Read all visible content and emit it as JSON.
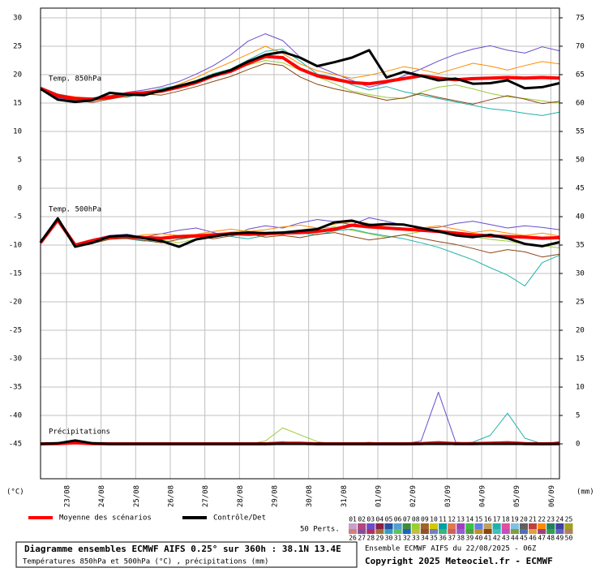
{
  "chart_data": {
    "type": "line",
    "title": "Diagramme ensembles ECMWF AIFS 0.25° sur 360h : 38.1N 13.4E",
    "subtitle": "Températures 850hPa et 500hPa (°C) , précipitations (mm)",
    "run_label": "Ensemble ECMWF AIFS du 22/08/2025 - 06Z",
    "copyright": "Copyright 2025 Meteociel.fr - ECMWF",
    "annotations": [
      "Temp. 850hPa",
      "Temp. 500hPa",
      "Précipitations"
    ],
    "y_unit_label": "(°C)",
    "y2_unit_label": "(mm)",
    "members_label": "50 Perts.",
    "grid": true,
    "x": [
      0,
      12,
      24,
      36,
      48,
      60,
      72,
      84,
      96,
      108,
      120,
      132,
      144,
      156,
      168,
      180,
      192,
      204,
      216,
      228,
      240,
      252,
      264,
      276,
      288,
      300,
      312,
      324,
      336,
      348,
      360
    ],
    "xlim": [
      0,
      360
    ],
    "xticks": [
      {
        "value": 18,
        "label": "23/08"
      },
      {
        "value": 42,
        "label": "24/08"
      },
      {
        "value": 66,
        "label": "25/08"
      },
      {
        "value": 90,
        "label": "26/08"
      },
      {
        "value": 114,
        "label": "27/08"
      },
      {
        "value": 138,
        "label": "28/08"
      },
      {
        "value": 162,
        "label": "29/08"
      },
      {
        "value": 186,
        "label": "30/08"
      },
      {
        "value": 210,
        "label": "31/08"
      },
      {
        "value": 234,
        "label": "01/09"
      },
      {
        "value": 258,
        "label": "02/09"
      },
      {
        "value": 282,
        "label": "03/09"
      },
      {
        "value": 306,
        "label": "04/09"
      },
      {
        "value": 330,
        "label": "05/09"
      },
      {
        "value": 354,
        "label": "06/09"
      }
    ],
    "ylim": [
      -51.14,
      31.71
    ],
    "yticks": [
      30,
      25,
      20,
      15,
      10,
      5,
      0,
      -5,
      -10,
      -15,
      -20,
      -25,
      -30,
      -35,
      -40,
      -45
    ],
    "y2lim": [
      -6.14,
      76.71
    ],
    "y2ticks": [
      75,
      70,
      65,
      60,
      55,
      50,
      45,
      40,
      35,
      30,
      25,
      20,
      15,
      10,
      5,
      0
    ],
    "series": [
      {
        "name": "Moyenne des scénarios",
        "color": "#ff0000",
        "t850": [
          17.6,
          16.3,
          15.8,
          15.7,
          16.0,
          16.6,
          16.8,
          17.1,
          17.8,
          18.6,
          19.8,
          20.6,
          22.0,
          23.2,
          23.0,
          21.0,
          19.8,
          19.2,
          18.6,
          18.4,
          18.8,
          19.3,
          19.8,
          19.4,
          19.1,
          19.3,
          19.4,
          19.5,
          19.4,
          19.5,
          19.4
        ],
        "t500": [
          -9.6,
          -5.6,
          -10.0,
          -9.2,
          -8.6,
          -8.5,
          -8.7,
          -8.8,
          -8.5,
          -8.4,
          -8.2,
          -8.0,
          -8.1,
          -8.0,
          -7.9,
          -7.8,
          -7.6,
          -7.2,
          -6.5,
          -6.8,
          -7.0,
          -7.2,
          -7.4,
          -7.6,
          -7.9,
          -8.2,
          -8.4,
          -8.5,
          -8.6,
          -8.8,
          -8.7
        ],
        "precip": [
          0,
          0.05,
          0.2,
          0.05,
          0,
          0,
          0,
          0,
          0,
          0,
          0,
          0,
          0,
          0,
          0.1,
          0.1,
          0,
          0,
          0,
          0,
          0,
          0,
          0.05,
          0.2,
          0.05,
          0.05,
          0.1,
          0.2,
          0.05,
          0,
          0.05
        ]
      },
      {
        "name": "Contrôle/Det",
        "color": "#000000",
        "t850": [
          17.5,
          15.6,
          15.2,
          15.5,
          16.8,
          16.5,
          16.4,
          17.2,
          18.0,
          18.8,
          19.9,
          20.8,
          22.3,
          23.5,
          24.0,
          23.0,
          21.5,
          22.2,
          23.0,
          24.3,
          19.5,
          20.5,
          19.8,
          19.0,
          19.3,
          18.4,
          18.5,
          19.0,
          17.6,
          17.8,
          18.5
        ],
        "t500": [
          -9.5,
          -5.3,
          -10.3,
          -9.6,
          -8.5,
          -8.3,
          -8.8,
          -9.3,
          -10.3,
          -9.0,
          -8.5,
          -8.0,
          -7.8,
          -7.9,
          -7.8,
          -7.5,
          -7.2,
          -6.0,
          -5.7,
          -6.5,
          -6.3,
          -6.4,
          -7.0,
          -7.6,
          -8.3,
          -8.6,
          -8.2,
          -8.8,
          -9.8,
          -10.2,
          -9.5
        ],
        "precip": [
          0,
          0.1,
          0.6,
          0.1,
          0,
          0,
          0,
          0,
          0,
          0,
          0,
          0,
          0,
          0,
          0,
          0,
          0,
          0,
          0,
          0,
          0,
          0,
          0,
          0,
          0,
          0,
          0,
          0,
          0,
          0,
          0
        ]
      }
    ],
    "members": [
      {
        "name": "01",
        "color": "#c8a0c8"
      },
      {
        "name": "02",
        "color": "#b4467a"
      },
      {
        "name": "03",
        "color": "#6a4ccd",
        "t850": [
          17.3,
          15.9,
          15.4,
          15.6,
          16.2,
          16.9,
          17.3,
          17.9,
          18.8,
          20.1,
          21.6,
          23.5,
          25.9,
          27.2,
          26.0,
          23.1,
          21.5,
          20.2,
          19.0,
          17.8,
          18.5,
          19.8,
          21.0,
          22.4,
          23.6,
          24.5,
          25.1,
          24.3,
          23.8,
          24.9,
          24.2
        ],
        "t500": [
          -9.4,
          -5.2,
          -10.1,
          -9.0,
          -8.3,
          -8.1,
          -8.6,
          -8.0,
          -7.4,
          -7.0,
          -7.8,
          -8.5,
          -7.2,
          -6.6,
          -7.0,
          -6.1,
          -5.5,
          -5.9,
          -6.4,
          -5.2,
          -5.8,
          -6.5,
          -7.1,
          -6.9,
          -6.2,
          -5.8,
          -6.4,
          -7.0,
          -6.6,
          -6.9,
          -7.3
        ],
        "precip": [
          0,
          0.2,
          0.4,
          0,
          0,
          0,
          0,
          0,
          0,
          0,
          0,
          0,
          0,
          0,
          0,
          0,
          0,
          0,
          0,
          0,
          0,
          0,
          0.5,
          9.1,
          0.3,
          0,
          0,
          0,
          0,
          0,
          0.4
        ]
      },
      {
        "name": "04",
        "color": "#8c2040"
      },
      {
        "name": "05",
        "color": "#2850a0"
      },
      {
        "name": "06",
        "color": "#50a0d0"
      },
      {
        "name": "07",
        "color": "#3c8c3c"
      },
      {
        "name": "08",
        "color": "#9acd32",
        "t850": [
          17.5,
          16.2,
          15.7,
          15.4,
          15.9,
          16.5,
          17.0,
          17.4,
          18.0,
          18.9,
          19.6,
          20.8,
          21.7,
          22.5,
          22.1,
          20.8,
          19.6,
          18.4,
          17.1,
          16.5,
          16.0,
          15.8,
          16.9,
          17.8,
          18.2,
          17.5,
          16.7,
          16.1,
          15.8,
          15.4,
          15.0
        ],
        "t500": [
          -9.5,
          -5.5,
          -9.9,
          -9.3,
          -8.7,
          -8.4,
          -8.5,
          -9.1,
          -9.6,
          -8.9,
          -8.3,
          -7.7,
          -7.5,
          -7.9,
          -8.2,
          -7.6,
          -7.1,
          -6.8,
          -7.4,
          -8.0,
          -8.6,
          -8.2,
          -7.6,
          -7.3,
          -7.9,
          -8.5,
          -9.0,
          -9.3,
          -9.8,
          -10.1,
          -10.5
        ],
        "precip": [
          0,
          0,
          0.1,
          0,
          0,
          0,
          0,
          0,
          0,
          0,
          0,
          0,
          0,
          0.5,
          2.8,
          1.6,
          0.4,
          0,
          0,
          0,
          0,
          0,
          0,
          0,
          0.2,
          0,
          0,
          0,
          0,
          0,
          0
        ]
      },
      {
        "name": "09",
        "color": "#a06428"
      },
      {
        "name": "10",
        "color": "#d4c800"
      },
      {
        "name": "11",
        "color": "#00a0a0"
      },
      {
        "name": "12",
        "color": "#e07850"
      },
      {
        "name": "13",
        "color": "#a040c0"
      },
      {
        "name": "14",
        "color": "#40c040"
      },
      {
        "name": "15",
        "color": "#6080e0"
      },
      {
        "name": "16",
        "color": "#c0a060"
      },
      {
        "name": "17",
        "color": "#20b2aa",
        "t850": [
          17.8,
          16.6,
          16.0,
          15.9,
          16.4,
          16.0,
          16.8,
          17.6,
          18.1,
          19.0,
          20.2,
          21.0,
          22.6,
          24.1,
          24.5,
          22.4,
          20.1,
          19.5,
          18.2,
          17.3,
          17.9,
          17.0,
          16.4,
          15.8,
          15.2,
          14.6,
          14.0,
          13.7,
          13.2,
          12.8,
          13.4
        ],
        "t500": [
          -9.7,
          -5.8,
          -10.2,
          -9.5,
          -8.8,
          -8.9,
          -9.3,
          -9.0,
          -8.8,
          -8.6,
          -8.1,
          -8.5,
          -8.9,
          -8.3,
          -7.6,
          -7.9,
          -8.2,
          -7.5,
          -7.2,
          -7.9,
          -8.4,
          -8.9,
          -9.6,
          -10.4,
          -11.5,
          -12.6,
          -14.0,
          -15.3,
          -17.2,
          -13.1,
          -11.8
        ],
        "precip": [
          0,
          0,
          0.1,
          0,
          0,
          0,
          0,
          0,
          0,
          0,
          0,
          0,
          0,
          0.2,
          0.4,
          0,
          0,
          0,
          0,
          0,
          0,
          0,
          0,
          0,
          0,
          0.3,
          1.5,
          5.4,
          1.0,
          0,
          0.3
        ]
      },
      {
        "name": "18",
        "color": "#e050a0"
      },
      {
        "name": "19",
        "color": "#80c0e0"
      },
      {
        "name": "20",
        "color": "#606060"
      },
      {
        "name": "21",
        "color": "#c04040"
      },
      {
        "name": "22",
        "color": "#ff8c00",
        "t850": [
          17.6,
          16.5,
          16.1,
          15.8,
          16.3,
          16.8,
          16.5,
          17.2,
          18.3,
          19.5,
          20.9,
          22.2,
          23.6,
          25.0,
          23.7,
          21.9,
          20.7,
          20.0,
          19.4,
          19.9,
          20.6,
          21.4,
          20.9,
          20.2,
          21.1,
          22.0,
          21.5,
          20.8,
          21.6,
          22.3,
          21.9
        ],
        "t500": [
          -9.6,
          -5.7,
          -10.0,
          -9.4,
          -8.9,
          -8.6,
          -8.2,
          -8.0,
          -8.3,
          -8.1,
          -7.6,
          -7.2,
          -7.6,
          -7.3,
          -6.8,
          -6.5,
          -7.0,
          -6.3,
          -5.9,
          -6.2,
          -6.8,
          -7.3,
          -7.0,
          -6.6,
          -7.2,
          -7.8,
          -7.4,
          -7.9,
          -8.3,
          -7.9,
          -8.4
        ],
        "precip": [
          0,
          0,
          0.2,
          0,
          0,
          0,
          0,
          0,
          0,
          0,
          0,
          0,
          0,
          0,
          0,
          0,
          0,
          0,
          0,
          0.3,
          0,
          0,
          0,
          0,
          0,
          0,
          0,
          0,
          0,
          0,
          0
        ]
      },
      {
        "name": "23",
        "color": "#208060"
      },
      {
        "name": "24",
        "color": "#4040a0"
      },
      {
        "name": "25",
        "color": "#a0a020"
      },
      {
        "name": "26",
        "color": "#d08080"
      },
      {
        "name": "27",
        "color": "#8050a0"
      },
      {
        "name": "28",
        "color": "#b03060"
      },
      {
        "name": "29",
        "color": "#a07040"
      },
      {
        "name": "30",
        "color": "#30a0c0"
      },
      {
        "name": "31",
        "color": "#60c060"
      },
      {
        "name": "32",
        "color": "#2060c0"
      },
      {
        "name": "33",
        "color": "#c0c040"
      },
      {
        "name": "34",
        "color": "#905030"
      },
      {
        "name": "35",
        "color": "#7080c0"
      },
      {
        "name": "36",
        "color": "#40b080"
      },
      {
        "name": "37",
        "color": "#d06060"
      },
      {
        "name": "38",
        "color": "#9060d0"
      },
      {
        "name": "39",
        "color": "#50a040"
      },
      {
        "name": "40",
        "color": "#c09030"
      },
      {
        "name": "41",
        "color": "#8b4513",
        "t850": [
          17.4,
          16.0,
          15.5,
          15.1,
          15.7,
          16.2,
          16.6,
          16.4,
          17.1,
          17.9,
          18.8,
          19.7,
          20.9,
          22.0,
          21.6,
          19.6,
          18.3,
          17.5,
          16.9,
          16.2,
          15.5,
          15.9,
          16.7,
          16.0,
          15.4,
          14.8,
          15.6,
          16.3,
          15.7,
          14.9,
          15.3
        ],
        "t500": [
          -9.8,
          -5.9,
          -10.4,
          -9.7,
          -9.0,
          -8.8,
          -9.2,
          -9.6,
          -9.0,
          -8.5,
          -8.9,
          -8.4,
          -8.0,
          -8.6,
          -8.3,
          -8.7,
          -8.1,
          -7.8,
          -8.5,
          -9.1,
          -8.7,
          -8.2,
          -8.8,
          -9.4,
          -9.9,
          -10.6,
          -11.4,
          -10.8,
          -11.2,
          -12.1,
          -11.6
        ],
        "precip": [
          0,
          0.1,
          0.3,
          0,
          0,
          0,
          0,
          0,
          0,
          0,
          0,
          0,
          0,
          0,
          0,
          0,
          0,
          0,
          0,
          0,
          0,
          0,
          0,
          0,
          0,
          0,
          0,
          0,
          0,
          0,
          0
        ]
      },
      {
        "name": "42",
        "color": "#40c0c0"
      },
      {
        "name": "43",
        "color": "#c050c0"
      },
      {
        "name": "44",
        "color": "#80a040"
      },
      {
        "name": "45",
        "color": "#5070b0"
      },
      {
        "name": "46",
        "color": "#e0a040"
      },
      {
        "name": "47",
        "color": "#a04080"
      },
      {
        "name": "48",
        "color": "#30a050"
      },
      {
        "name": "49",
        "color": "#6060c0"
      },
      {
        "name": "50",
        "color": "#b08060"
      }
    ]
  }
}
